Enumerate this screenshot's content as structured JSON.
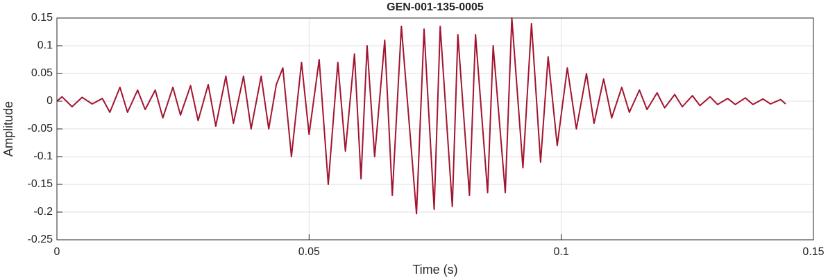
{
  "chart_data": {
    "type": "line",
    "title": "GEN-001-135-0005",
    "xlabel": "Time (s)",
    "ylabel": "Amplitude",
    "x": [
      0,
      0.001,
      0.003,
      0.005,
      0.007,
      0.009,
      0.0105,
      0.0125,
      0.014,
      0.016,
      0.0175,
      0.0195,
      0.021,
      0.023,
      0.0245,
      0.0265,
      0.028,
      0.03,
      0.0315,
      0.0335,
      0.035,
      0.037,
      0.0385,
      0.0405,
      0.042,
      0.0435,
      0.0448,
      0.0465,
      0.0485,
      0.05,
      0.052,
      0.0538,
      0.0557,
      0.0572,
      0.059,
      0.0603,
      0.0615,
      0.063,
      0.065,
      0.0665,
      0.0683,
      0.0713,
      0.0728,
      0.0748,
      0.076,
      0.0784,
      0.0795,
      0.0818,
      0.083,
      0.0854,
      0.0865,
      0.0889,
      0.0902,
      0.0924,
      0.0941,
      0.0959,
      0.0974,
      0.0992,
      0.1012,
      0.103,
      0.105,
      0.1065,
      0.1084,
      0.11,
      0.112,
      0.1135,
      0.1155,
      0.117,
      0.119,
      0.1205,
      0.1225,
      0.124,
      0.126,
      0.1275,
      0.1295,
      0.131,
      0.133,
      0.1345,
      0.1365,
      0.138,
      0.14,
      0.1415,
      0.1435,
      0.1445
    ],
    "series": [
      {
        "color": "#a2142f",
        "values": [
          0,
          0.008,
          -0.01,
          0.007,
          -0.005,
          0.005,
          -0.02,
          0.025,
          -0.02,
          0.02,
          -0.015,
          0.02,
          -0.03,
          0.025,
          -0.025,
          0.028,
          -0.035,
          0.03,
          -0.045,
          0.045,
          -0.04,
          0.045,
          -0.05,
          0.045,
          -0.05,
          0.03,
          0.06,
          -0.1,
          0.07,
          -0.06,
          0.075,
          -0.15,
          0.07,
          -0.09,
          0.085,
          -0.14,
          0.1,
          -0.1,
          0.11,
          -0.17,
          0.135,
          -0.203,
          0.13,
          -0.195,
          0.135,
          -0.19,
          0.12,
          -0.17,
          0.12,
          -0.165,
          0.1,
          -0.165,
          0.15,
          -0.12,
          0.14,
          -0.11,
          0.08,
          -0.08,
          0.06,
          -0.05,
          0.05,
          -0.04,
          0.04,
          -0.03,
          0.025,
          -0.02,
          0.02,
          -0.015,
          0.015,
          -0.012,
          0.012,
          -0.01,
          0.01,
          -0.008,
          0.008,
          -0.006,
          0.005,
          -0.006,
          0.006,
          -0.006,
          0.004,
          -0.005,
          0.003,
          -0.005
        ]
      }
    ],
    "xlim": [
      0,
      0.15
    ],
    "xticks": [
      0,
      0.05,
      0.1,
      0.15
    ],
    "ylim": [
      -0.25,
      0.15
    ],
    "yticks": [
      -0.25,
      -0.2,
      -0.15,
      -0.1,
      -0.05,
      0,
      0.05,
      0.1,
      0.15
    ],
    "grid": true
  }
}
